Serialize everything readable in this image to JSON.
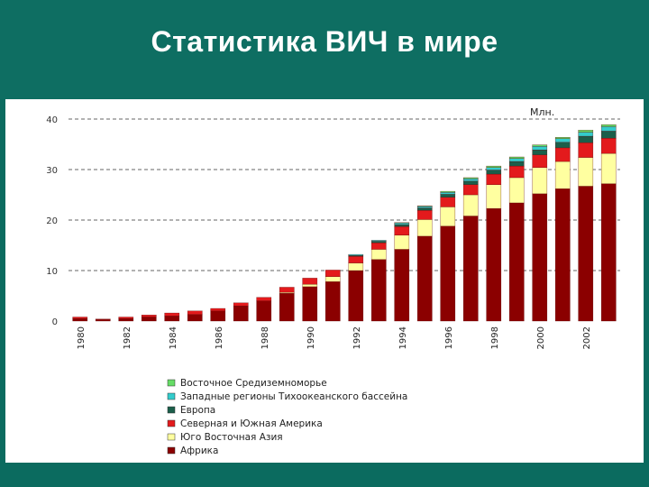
{
  "slide": {
    "title": "Статистика ВИЧ в мире"
  },
  "colors": {
    "header_bg": "#0e6e62",
    "panel_bg": "#ffffff"
  },
  "chart_data": {
    "type": "bar",
    "stacked": true,
    "unit_label": "Млн.",
    "ylim": [
      0,
      40
    ],
    "y_ticks": [
      "0",
      "10",
      "20",
      "30",
      "40"
    ],
    "grid": "dashed horizontal",
    "legend_position": "bottom-left",
    "categories": [
      "1980",
      "1981",
      "1982",
      "1983",
      "1984",
      "1985",
      "1986",
      "1987",
      "1988",
      "1989",
      "1990",
      "1991",
      "1992",
      "1993",
      "1994",
      "1995",
      "1996",
      "1997",
      "1998",
      "1999",
      "2000",
      "2001",
      "2002",
      "2003"
    ],
    "x_tick_labels": [
      "1980",
      "1982",
      "1984",
      "1986",
      "1988",
      "1990",
      "1992",
      "1994",
      "1996",
      "1998",
      "2000",
      "2002"
    ],
    "x_tick_label_categories": [
      "1980",
      "1982",
      "1984",
      "1986",
      "1988",
      "1990",
      "1992",
      "1994",
      "1996",
      "1998",
      "2000",
      "2002"
    ],
    "series": [
      {
        "name": "Африка",
        "color": "#8b0000",
        "values": [
          0.5,
          0.3,
          0.5,
          0.8,
          1.0,
          1.3,
          2.0,
          3.0,
          4.0,
          5.5,
          6.8,
          7.8,
          10.0,
          12.2,
          14.2,
          16.8,
          18.8,
          20.8,
          22.3,
          23.4,
          25.2,
          26.2,
          26.7,
          27.2
        ]
      },
      {
        "name": "Юго Восточная Азия",
        "color": "#ffffa0",
        "values": [
          0,
          0,
          0,
          0,
          0,
          0,
          0,
          0,
          0,
          0.2,
          0.5,
          1.0,
          1.5,
          2.0,
          2.8,
          3.3,
          3.8,
          4.2,
          4.7,
          5.0,
          5.2,
          5.4,
          5.7,
          6.0
        ]
      },
      {
        "name": "Северная и Южная Америка",
        "color": "#e31a1c",
        "values": [
          0.3,
          0.1,
          0.3,
          0.4,
          0.6,
          0.7,
          0.5,
          0.6,
          0.7,
          1.0,
          1.2,
          1.3,
          1.3,
          1.3,
          1.7,
          1.8,
          1.9,
          2.0,
          2.1,
          2.3,
          2.5,
          2.7,
          2.9,
          3.0
        ]
      },
      {
        "name": "Европа",
        "color": "#1b5e4a",
        "values": [
          0,
          0,
          0,
          0,
          0,
          0,
          0,
          0,
          0,
          0,
          0,
          0,
          0.2,
          0.3,
          0.4,
          0.5,
          0.6,
          0.7,
          0.8,
          0.9,
          1.0,
          1.1,
          1.3,
          1.4
        ]
      },
      {
        "name": "Западные регионы Тихоокеанского бассейна",
        "color": "#33cccc",
        "values": [
          0,
          0,
          0,
          0,
          0,
          0,
          0,
          0,
          0,
          0,
          0,
          0,
          0.2,
          0.2,
          0.3,
          0.3,
          0.4,
          0.5,
          0.5,
          0.6,
          0.7,
          0.7,
          0.8,
          0.9
        ]
      },
      {
        "name": "Восточное Средиземноморье",
        "color": "#66dd66",
        "values": [
          0,
          0,
          0,
          0,
          0,
          0,
          0,
          0,
          0,
          0,
          0,
          0,
          0,
          0,
          0.1,
          0.1,
          0.2,
          0.2,
          0.3,
          0.3,
          0.3,
          0.3,
          0.4,
          0.4
        ]
      }
    ],
    "legend_order": [
      "Восточное Средиземноморье",
      "Западные регионы Тихоокеанского бассейна",
      "Европа",
      "Северная и Южная Америка",
      "Юго Восточная Азия",
      "Африка"
    ]
  }
}
